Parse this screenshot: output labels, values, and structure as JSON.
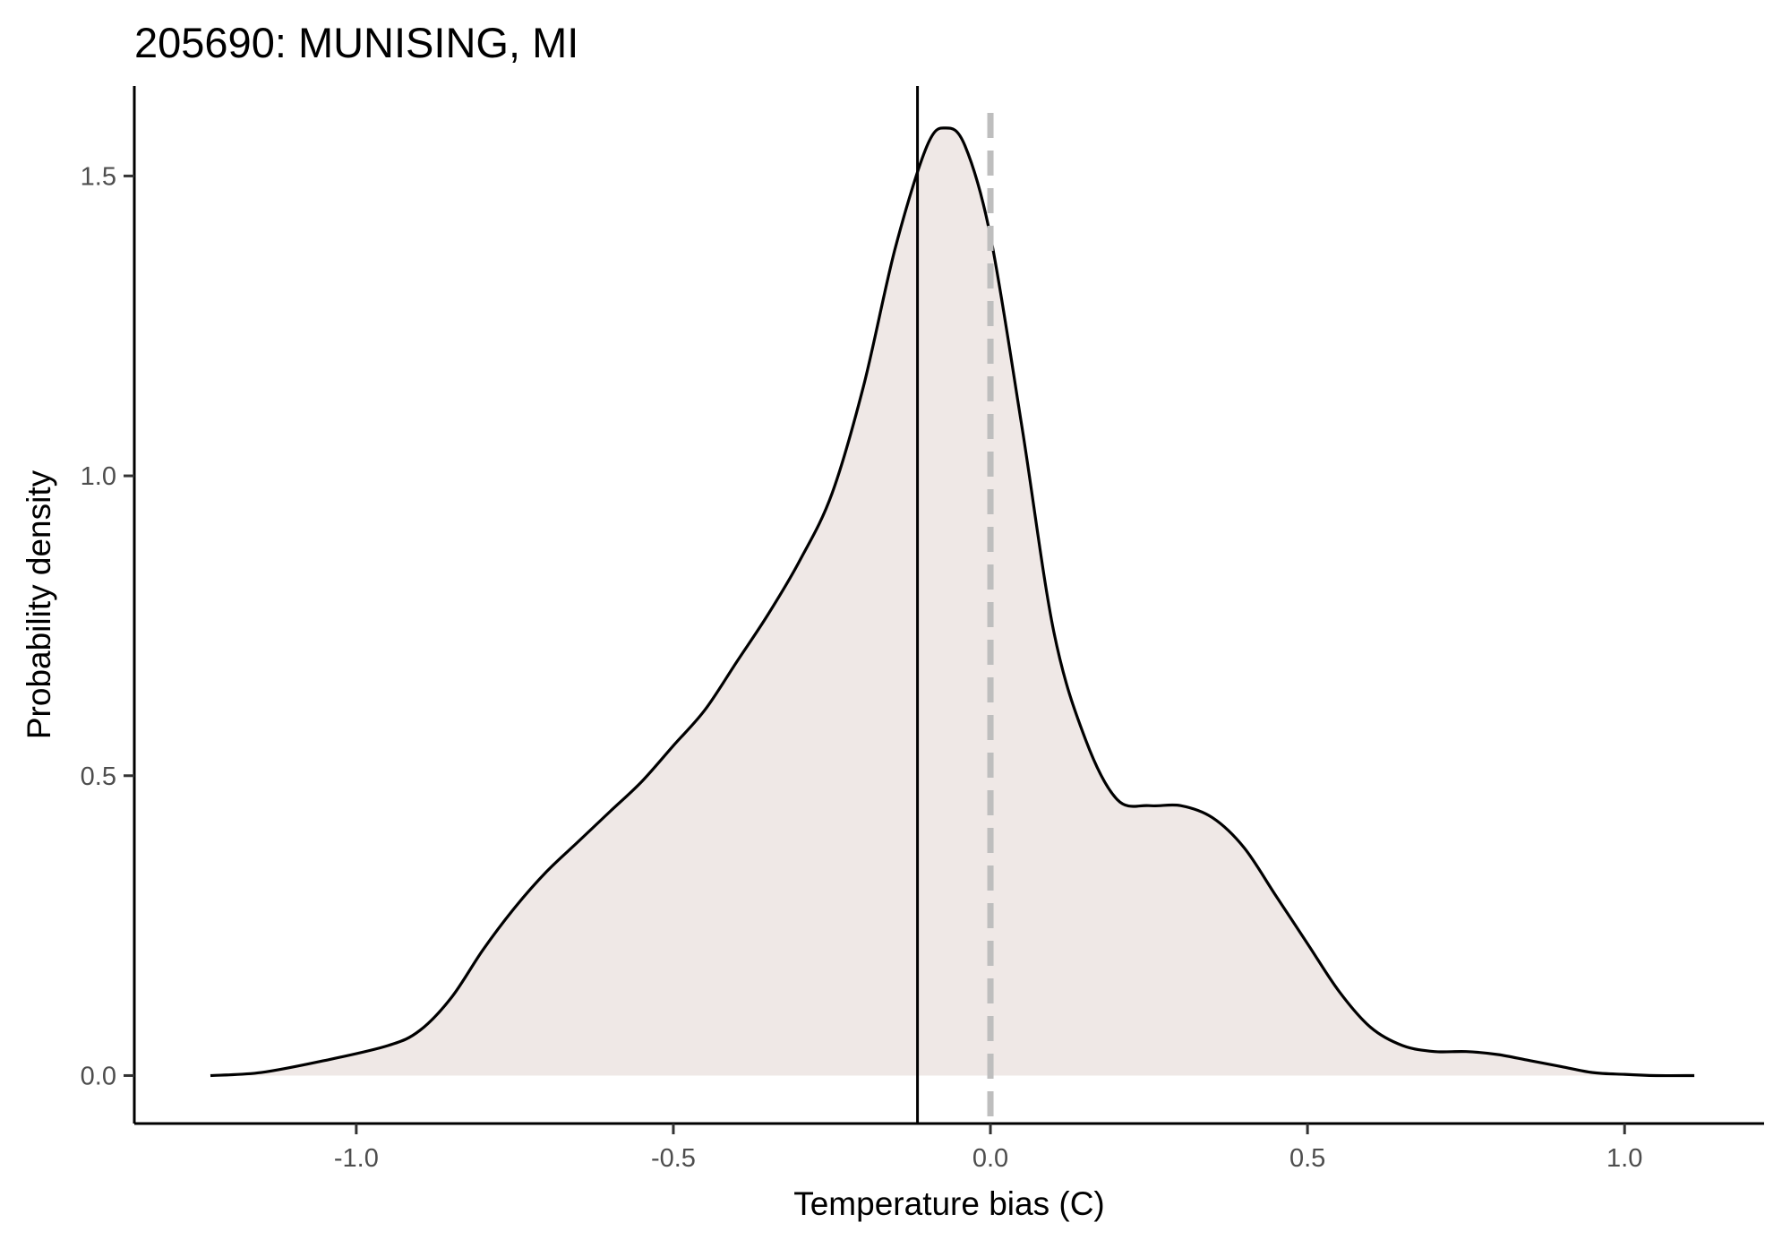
{
  "chart_data": {
    "type": "area",
    "title": "205690: MUNISING, MI",
    "xlabel": "Temperature bias (C)",
    "ylabel": "Probability density",
    "xlim": [
      -1.35,
      1.22
    ],
    "ylim": [
      -0.08,
      1.65
    ],
    "x_ticks": [
      -1.0,
      -0.5,
      0.0,
      0.5,
      1.0
    ],
    "x_tick_labels": [
      "-1.0",
      "-0.5",
      "0.0",
      "0.5",
      "1.0"
    ],
    "y_ticks": [
      0.0,
      0.5,
      1.0,
      1.5
    ],
    "y_tick_labels": [
      "0.0",
      "0.5",
      "1.0",
      "1.5"
    ],
    "grid": false,
    "fill_color": "#efe8e6",
    "line_color": "#000000",
    "reference_lines": [
      {
        "name": "mean bias",
        "x": -0.115,
        "style": "solid",
        "color": "#000000"
      },
      {
        "name": "zero bias",
        "x": 0.0,
        "style": "dashed",
        "color": "#bebebe"
      }
    ],
    "series": [
      {
        "x": [
          -1.23,
          -1.15,
          -1.05,
          -0.95,
          -0.9,
          -0.85,
          -0.8,
          -0.75,
          -0.7,
          -0.65,
          -0.6,
          -0.55,
          -0.5,
          -0.45,
          -0.4,
          -0.35,
          -0.3,
          -0.25,
          -0.2,
          -0.15,
          -0.1,
          -0.07,
          -0.04,
          0.0,
          0.05,
          0.1,
          0.15,
          0.2,
          0.25,
          0.3,
          0.35,
          0.4,
          0.45,
          0.5,
          0.55,
          0.6,
          0.65,
          0.7,
          0.75,
          0.8,
          0.85,
          0.9,
          0.95,
          1.0,
          1.05,
          1.11
        ],
        "y": [
          0.0,
          0.005,
          0.025,
          0.05,
          0.075,
          0.13,
          0.21,
          0.28,
          0.34,
          0.39,
          0.44,
          0.49,
          0.55,
          0.61,
          0.69,
          0.77,
          0.86,
          0.97,
          1.15,
          1.38,
          1.55,
          1.58,
          1.55,
          1.4,
          1.08,
          0.74,
          0.56,
          0.46,
          0.45,
          0.45,
          0.43,
          0.38,
          0.3,
          0.22,
          0.14,
          0.08,
          0.05,
          0.04,
          0.04,
          0.035,
          0.025,
          0.015,
          0.005,
          0.002,
          0.0,
          0.0
        ]
      }
    ]
  }
}
